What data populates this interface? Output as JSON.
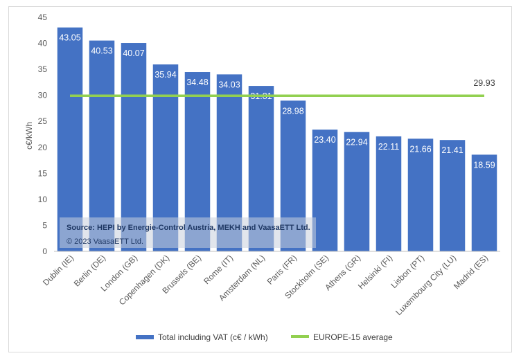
{
  "chart_data": {
    "type": "bar",
    "ylabel": "c€/kWh",
    "xlabel": "",
    "ylim": [
      0,
      45
    ],
    "yticks": [
      0,
      5,
      10,
      15,
      20,
      25,
      30,
      35,
      40,
      45
    ],
    "grid": false,
    "legend_position": "bottom",
    "categories": [
      "Dublin (IE)",
      "Berlin (DE)",
      "London (GB)",
      "Copenhagen (DK)",
      "Brussels (BE)",
      "Rome (IT)",
      "Amsterdam (NL)",
      "Paris (FR)",
      "Stockholm (SE)",
      "Athens (GR)",
      "Helsinki (FI)",
      "Lisbon (PT)",
      "Luxembourg City (LU)",
      "Madrid (ES)"
    ],
    "series": [
      {
        "name": "Total including VAT (c€ / kWh)",
        "type": "bar",
        "color": "#4472c4",
        "values": [
          43.05,
          40.53,
          40.07,
          35.94,
          34.48,
          34.03,
          31.81,
          28.98,
          23.4,
          22.94,
          22.11,
          21.66,
          21.41,
          18.59
        ],
        "labels": [
          "43.05",
          "40.53",
          "40.07",
          "35.94",
          "34.48",
          "34.03",
          "31.81",
          "28.98",
          "23.40",
          "22.94",
          "22.11",
          "21.66",
          "21.41",
          "18.59"
        ]
      },
      {
        "name": "EUROPE-15 average",
        "type": "line",
        "color": "#92d050",
        "value": 29.93,
        "label": "29.93"
      }
    ]
  },
  "source_note": {
    "bold_text": "Source: HEPI by Energie-Control Austria, MEKH and VaasaETT Ltd.",
    "normal_text": " © 2023 VaasaETT Ltd."
  }
}
